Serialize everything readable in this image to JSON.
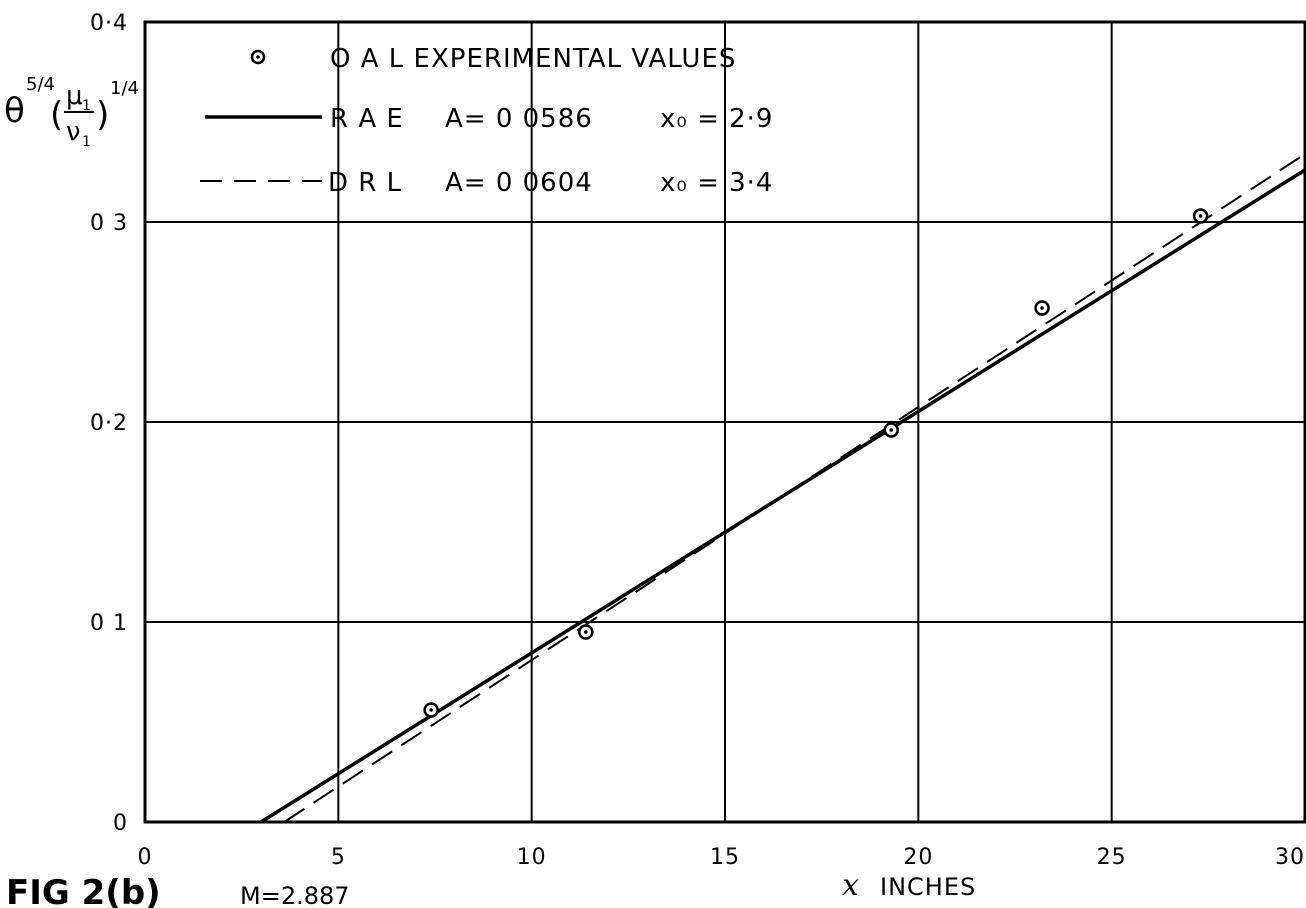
{
  "chart_data": {
    "type": "line",
    "figure_label": "FIG 2(b)",
    "figure_sublabel": "M=2.887",
    "xlabel_symbol": "x",
    "xlabel": "INCHES",
    "ylabel": {
      "theta": "θ",
      "theta_power": "5/4",
      "ratio_num": "μ",
      "ratio_num_sub": "1",
      "ratio_den": "ν",
      "ratio_den_sub": "1",
      "outer_power": "1/4"
    },
    "xlim": [
      0,
      30
    ],
    "ylim": [
      0,
      0.4
    ],
    "x_ticks": [
      0,
      5,
      10,
      15,
      20,
      25,
      30
    ],
    "x_tick_labels": [
      "0",
      "5",
      "10",
      "15",
      "20",
      "25",
      "30"
    ],
    "y_ticks": [
      0,
      0.1,
      0.2,
      0.3,
      0.4
    ],
    "y_tick_labels": [
      "0",
      "0 1",
      "0·2",
      "0 3",
      "0·4"
    ],
    "grid": true,
    "legend_position": "top-left",
    "series": [
      {
        "name": "O A L EXPERIMENTAL VALUES",
        "style": "markers",
        "points": [
          [
            7.4,
            0.056
          ],
          [
            11.4,
            0.095
          ],
          [
            19.3,
            0.196
          ],
          [
            23.2,
            0.257
          ],
          [
            27.3,
            0.303
          ]
        ]
      },
      {
        "name": "R A E",
        "style": "solid",
        "param_A": "A= 0 0586",
        "param_x0": "x₀ = 2·9",
        "points": [
          [
            3.0,
            0.0
          ],
          [
            30.0,
            0.326
          ]
        ]
      },
      {
        "name": "D R L",
        "style": "dashed",
        "param_A": "A= 0 0604",
        "param_x0": "x₀ = 3·4",
        "points": [
          [
            3.6,
            0.0
          ],
          [
            30.0,
            0.334
          ]
        ]
      }
    ]
  }
}
